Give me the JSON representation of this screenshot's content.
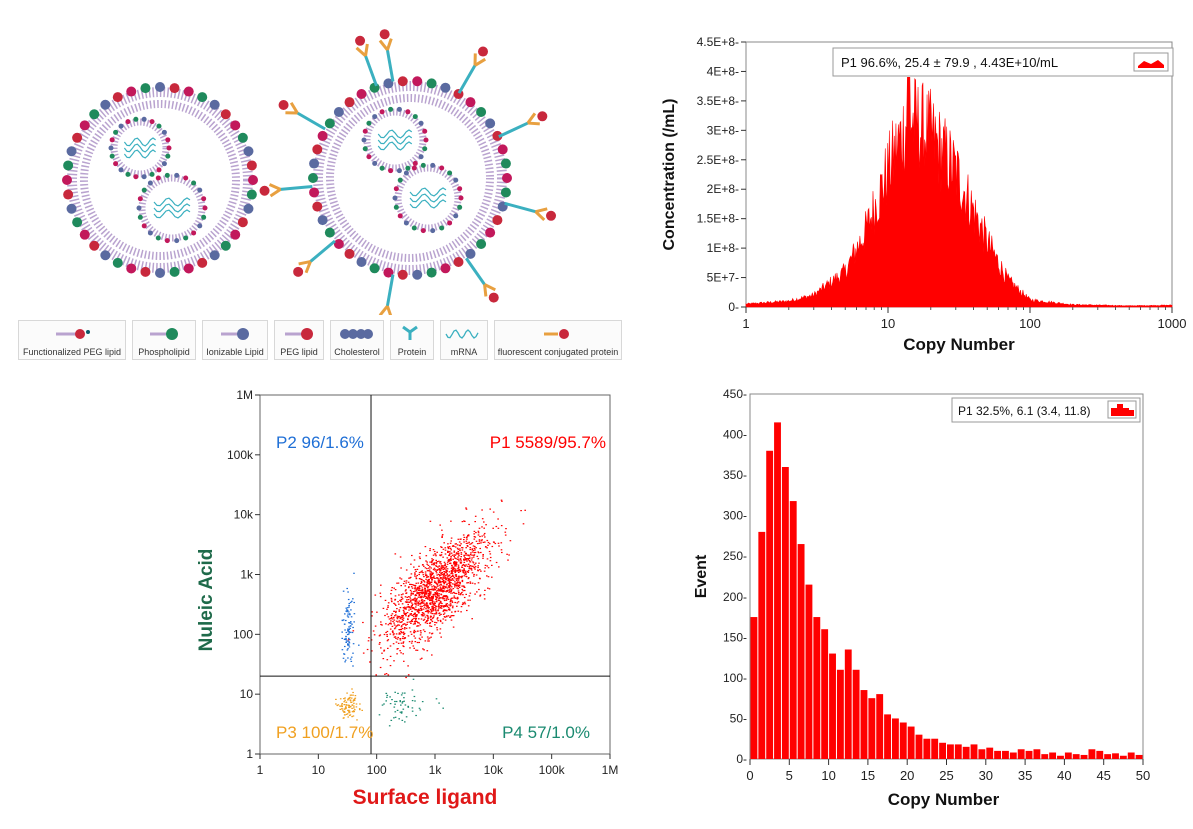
{
  "colors": {
    "red": "#ff0000",
    "blue": "#1f6fd6",
    "orange": "#f0a020",
    "teal": "#1a8a70",
    "green_label": "#1e6a4a",
    "red_label": "#e01818"
  },
  "illustration": {
    "legend": [
      {
        "label": "Functionalized PEG lipid",
        "icon": "functionalized-peg-lipid-icon"
      },
      {
        "label": "Phospholipid",
        "icon": "phospholipid-icon"
      },
      {
        "label": "Ionizable Lipid",
        "icon": "ionizable-lipid-icon"
      },
      {
        "label": "PEG lipid",
        "icon": "peg-lipid-icon"
      },
      {
        "label": "Cholesterol",
        "icon": "cholesterol-icon"
      },
      {
        "label": "Protein",
        "icon": "protein-icon"
      },
      {
        "label": "mRNA",
        "icon": "mrna-icon"
      },
      {
        "label": "fluorescent conjugated protein",
        "icon": "fluorescent-protein-icon"
      }
    ]
  },
  "chart_data": [
    {
      "type": "area",
      "id": "concentration",
      "title": "",
      "xlabel": "Copy Number",
      "ylabel": "Concentration (/mL)",
      "xscale": "log",
      "xlim": [
        1,
        1000
      ],
      "ylim": [
        0,
        450000000
      ],
      "x_ticks": [
        "1",
        "10",
        "100",
        "1000"
      ],
      "y_ticks": [
        "0",
        "5E+7",
        "1E+8",
        "1.5E+8",
        "2E+8",
        "2.5E+8",
        "3E+8",
        "3.5E+8",
        "4E+8",
        "4.5E+8"
      ],
      "legend": "P1  96.6%,  25.4 ± 79.9 ,  4.43E+10/mL",
      "series": [
        {
          "name": "P1",
          "peak_x": 14,
          "peak_value": 390000000,
          "envelope": {
            "x": [
              1,
              2,
              3,
              5,
              7,
              10,
              14,
              20,
              30,
              50,
              70,
              100,
              200,
              500,
              1000
            ],
            "values": [
              5000000,
              10000000,
              20000000,
              60000000,
              130000000,
              230000000,
              320000000,
              290000000,
              230000000,
              110000000,
              45000000,
              12000000,
              4000000,
              2000000,
              3000000
            ]
          }
        }
      ]
    },
    {
      "type": "scatter",
      "id": "flow",
      "xlabel": "Surface ligand",
      "ylabel": "Nuleic Acid",
      "xscale": "log",
      "yscale": "log",
      "xlim": [
        1,
        1000000
      ],
      "ylim": [
        1,
        1000000
      ],
      "x_ticks": [
        "1",
        "10",
        "100",
        "1k",
        "10k",
        "100k",
        "1M"
      ],
      "y_ticks": [
        "1",
        "10",
        "100",
        "1k",
        "10k",
        "100k",
        "1M"
      ],
      "gates": {
        "x": 80,
        "y": 20
      },
      "quadrants": [
        {
          "name": "P1",
          "label": "P1 5589/95.7%",
          "count": 5589,
          "percent": 95.7,
          "position": "top-right"
        },
        {
          "name": "P2",
          "label": "P2 96/1.6%",
          "count": 96,
          "percent": 1.6,
          "position": "top-left"
        },
        {
          "name": "P3",
          "label": "P3 100/1.7%",
          "count": 100,
          "percent": 1.7,
          "position": "bottom-left"
        },
        {
          "name": "P4",
          "label": "P4 57/1.0%",
          "count": 57,
          "percent": 1.0,
          "position": "bottom-right"
        }
      ]
    },
    {
      "type": "bar",
      "id": "histogram",
      "xlabel": "Copy Number",
      "ylabel": "Event",
      "xlim": [
        0,
        50
      ],
      "ylim": [
        0,
        450
      ],
      "x_ticks": [
        "0",
        "5",
        "10",
        "15",
        "20",
        "25",
        "30",
        "35",
        "40",
        "45",
        "50"
      ],
      "y_ticks": [
        "0-",
        "50-",
        "100-",
        "150-",
        "200-",
        "250-",
        "300-",
        "350-",
        "400-",
        "450-"
      ],
      "legend": "P1  32.5%,  6.1 (3.4, 11.8)",
      "x": [
        0,
        1,
        2,
        3,
        4,
        5,
        6,
        7,
        8,
        9,
        10,
        11,
        12,
        13,
        14,
        15,
        16,
        17,
        18,
        19,
        20,
        21,
        22,
        23,
        24,
        25,
        26,
        27,
        28,
        29,
        30,
        31,
        32,
        33,
        34,
        35,
        36,
        37,
        38,
        39,
        40,
        41,
        42,
        43,
        44,
        45,
        46,
        47,
        48,
        49
      ],
      "values": [
        175,
        280,
        380,
        415,
        360,
        318,
        265,
        215,
        175,
        160,
        130,
        110,
        135,
        110,
        85,
        75,
        80,
        55,
        50,
        45,
        40,
        30,
        25,
        25,
        20,
        18,
        18,
        15,
        18,
        12,
        14,
        10,
        10,
        8,
        12,
        10,
        12,
        6,
        8,
        4,
        8,
        6,
        5,
        12,
        10,
        6,
        7,
        4,
        8,
        5
      ]
    }
  ]
}
